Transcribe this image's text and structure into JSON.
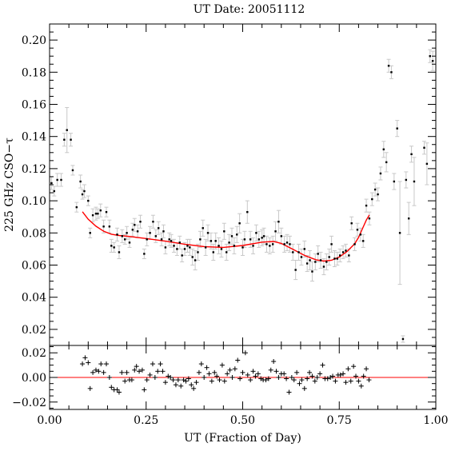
{
  "chart_data": [
    {
      "type": "scatter",
      "panel": "main",
      "title": "UT Date: 20051112",
      "ylabel": "225 GHz CSO−τ",
      "xlabel": "",
      "xlim": [
        0.0,
        1.0
      ],
      "ylim": [
        0.01,
        0.21
      ],
      "y_ticks": [
        0.02,
        0.04,
        0.06,
        0.08,
        0.1,
        0.12,
        0.14,
        0.16,
        0.18,
        0.2
      ],
      "y_tick_labels": [
        "0.02",
        "0.04",
        "0.06",
        "0.08",
        "0.10",
        "0.12",
        "0.14",
        "0.16",
        "0.18",
        "0.20"
      ],
      "x_ticks": [
        0.0,
        0.25,
        0.5,
        0.75,
        1.0
      ],
      "grid": false,
      "colors": {
        "points": "#000000",
        "errorbars": "#c8c8c8",
        "fit": "#ff0000"
      },
      "points": [
        [
          0.005,
          0.111,
          0.004
        ],
        [
          0.012,
          0.106,
          0.003
        ],
        [
          0.02,
          0.113,
          0.004
        ],
        [
          0.03,
          0.113,
          0.004
        ],
        [
          0.038,
          0.138,
          0.004
        ],
        [
          0.045,
          0.144,
          0.014
        ],
        [
          0.055,
          0.138,
          0.004
        ],
        [
          0.06,
          0.119,
          0.003
        ],
        [
          0.07,
          0.096,
          0.003
        ],
        [
          0.08,
          0.112,
          0.004
        ],
        [
          0.085,
          0.104,
          0.003
        ],
        [
          0.09,
          0.106,
          0.004
        ],
        [
          0.1,
          0.1,
          0.003
        ],
        [
          0.105,
          0.08,
          0.003
        ],
        [
          0.112,
          0.091,
          0.004
        ],
        [
          0.12,
          0.092,
          0.004
        ],
        [
          0.125,
          0.092,
          0.003
        ],
        [
          0.132,
          0.094,
          0.004
        ],
        [
          0.14,
          0.084,
          0.004
        ],
        [
          0.147,
          0.093,
          0.003
        ],
        [
          0.155,
          0.084,
          0.004
        ],
        [
          0.16,
          0.072,
          0.004
        ],
        [
          0.167,
          0.071,
          0.003
        ],
        [
          0.175,
          0.079,
          0.004
        ],
        [
          0.18,
          0.068,
          0.004
        ],
        [
          0.188,
          0.078,
          0.004
        ],
        [
          0.195,
          0.076,
          0.003
        ],
        [
          0.2,
          0.08,
          0.004
        ],
        [
          0.207,
          0.074,
          0.003
        ],
        [
          0.215,
          0.082,
          0.004
        ],
        [
          0.22,
          0.085,
          0.004
        ],
        [
          0.228,
          0.081,
          0.004
        ],
        [
          0.235,
          0.087,
          0.004
        ],
        [
          0.245,
          0.067,
          0.003
        ],
        [
          0.252,
          0.076,
          0.004
        ],
        [
          0.26,
          0.08,
          0.004
        ],
        [
          0.268,
          0.087,
          0.004
        ],
        [
          0.275,
          0.078,
          0.004
        ],
        [
          0.282,
          0.083,
          0.004
        ],
        [
          0.29,
          0.076,
          0.004
        ],
        [
          0.295,
          0.081,
          0.004
        ],
        [
          0.3,
          0.071,
          0.004
        ],
        [
          0.31,
          0.076,
          0.004
        ],
        [
          0.315,
          0.075,
          0.004
        ],
        [
          0.322,
          0.072,
          0.004
        ],
        [
          0.33,
          0.07,
          0.004
        ],
        [
          0.337,
          0.074,
          0.004
        ],
        [
          0.343,
          0.066,
          0.004
        ],
        [
          0.35,
          0.07,
          0.004
        ],
        [
          0.357,
          0.072,
          0.004
        ],
        [
          0.363,
          0.071,
          0.005
        ],
        [
          0.37,
          0.065,
          0.005
        ],
        [
          0.377,
          0.063,
          0.006
        ],
        [
          0.384,
          0.068,
          0.005
        ],
        [
          0.39,
          0.076,
          0.005
        ],
        [
          0.397,
          0.083,
          0.005
        ],
        [
          0.404,
          0.071,
          0.005
        ],
        [
          0.41,
          0.08,
          0.005
        ],
        [
          0.418,
          0.075,
          0.005
        ],
        [
          0.424,
          0.068,
          0.005
        ],
        [
          0.43,
          0.075,
          0.005
        ],
        [
          0.438,
          0.072,
          0.005
        ],
        [
          0.445,
          0.07,
          0.005
        ],
        [
          0.452,
          0.081,
          0.005
        ],
        [
          0.458,
          0.068,
          0.005
        ],
        [
          0.465,
          0.074,
          0.005
        ],
        [
          0.472,
          0.078,
          0.005
        ],
        [
          0.478,
          0.072,
          0.005
        ],
        [
          0.485,
          0.079,
          0.005
        ],
        [
          0.492,
          0.086,
          0.006
        ],
        [
          0.5,
          0.071,
          0.005
        ],
        [
          0.505,
          0.076,
          0.005
        ],
        [
          0.512,
          0.093,
          0.007
        ],
        [
          0.52,
          0.076,
          0.005
        ],
        [
          0.527,
          0.072,
          0.005
        ],
        [
          0.535,
          0.08,
          0.005
        ],
        [
          0.542,
          0.076,
          0.005
        ],
        [
          0.55,
          0.077,
          0.005
        ],
        [
          0.555,
          0.078,
          0.005
        ],
        [
          0.562,
          0.073,
          0.005
        ],
        [
          0.57,
          0.072,
          0.005
        ],
        [
          0.578,
          0.073,
          0.005
        ],
        [
          0.585,
          0.081,
          0.006
        ],
        [
          0.593,
          0.087,
          0.007
        ],
        [
          0.6,
          0.078,
          0.005
        ],
        [
          0.608,
          0.073,
          0.005
        ],
        [
          0.615,
          0.074,
          0.005
        ],
        [
          0.622,
          0.073,
          0.005
        ],
        [
          0.63,
          0.068,
          0.005
        ],
        [
          0.637,
          0.057,
          0.006
        ],
        [
          0.645,
          0.068,
          0.005
        ],
        [
          0.652,
          0.065,
          0.005
        ],
        [
          0.66,
          0.07,
          0.005
        ],
        [
          0.667,
          0.061,
          0.005
        ],
        [
          0.674,
          0.063,
          0.006
        ],
        [
          0.68,
          0.056,
          0.006
        ],
        [
          0.688,
          0.062,
          0.005
        ],
        [
          0.695,
          0.067,
          0.005
        ],
        [
          0.702,
          0.063,
          0.005
        ],
        [
          0.71,
          0.059,
          0.005
        ],
        [
          0.717,
          0.062,
          0.005
        ],
        [
          0.724,
          0.065,
          0.005
        ],
        [
          0.73,
          0.073,
          0.005
        ],
        [
          0.738,
          0.064,
          0.005
        ],
        [
          0.745,
          0.064,
          0.004
        ],
        [
          0.752,
          0.066,
          0.004
        ],
        [
          0.76,
          0.068,
          0.004
        ],
        [
          0.767,
          0.069,
          0.004
        ],
        [
          0.775,
          0.066,
          0.004
        ],
        [
          0.782,
          0.086,
          0.004
        ],
        [
          0.79,
          0.073,
          0.004
        ],
        [
          0.797,
          0.082,
          0.004
        ],
        [
          0.805,
          0.079,
          0.004
        ],
        [
          0.812,
          0.075,
          0.004
        ],
        [
          0.82,
          0.097,
          0.004
        ],
        [
          0.828,
          0.089,
          0.004
        ],
        [
          0.835,
          0.101,
          0.004
        ],
        [
          0.843,
          0.107,
          0.004
        ],
        [
          0.85,
          0.104,
          0.004
        ],
        [
          0.857,
          0.117,
          0.004
        ],
        [
          0.865,
          0.132,
          0.005
        ],
        [
          0.872,
          0.124,
          0.006
        ],
        [
          0.878,
          0.184,
          0.004
        ],
        [
          0.885,
          0.18,
          0.004
        ],
        [
          0.892,
          0.112,
          0.005
        ],
        [
          0.9,
          0.145,
          0.005
        ],
        [
          0.907,
          0.08,
          0.032
        ],
        [
          0.915,
          0.014,
          0.002
        ],
        [
          0.923,
          0.113,
          0.005
        ],
        [
          0.93,
          0.089,
          0.01
        ],
        [
          0.937,
          0.129,
          0.005
        ],
        [
          0.944,
          0.112,
          0.015
        ],
        [
          0.97,
          0.133,
          0.004
        ],
        [
          0.977,
          0.123,
          0.013
        ],
        [
          0.985,
          0.19,
          0.004
        ],
        [
          0.992,
          0.187,
          0.006
        ]
      ],
      "fit_curve": [
        [
          0.085,
          0.0932
        ],
        [
          0.1,
          0.0885
        ],
        [
          0.12,
          0.0842
        ],
        [
          0.14,
          0.0811
        ],
        [
          0.16,
          0.0792
        ],
        [
          0.18,
          0.0784
        ],
        [
          0.2,
          0.078
        ],
        [
          0.25,
          0.0765
        ],
        [
          0.3,
          0.0749
        ],
        [
          0.35,
          0.073
        ],
        [
          0.4,
          0.0715
        ],
        [
          0.45,
          0.071
        ],
        [
          0.5,
          0.0722
        ],
        [
          0.55,
          0.0743
        ],
        [
          0.58,
          0.0747
        ],
        [
          0.6,
          0.0735
        ],
        [
          0.63,
          0.0698
        ],
        [
          0.66,
          0.066
        ],
        [
          0.69,
          0.0633
        ],
        [
          0.71,
          0.0625
        ],
        [
          0.73,
          0.063
        ],
        [
          0.75,
          0.065
        ],
        [
          0.77,
          0.0684
        ],
        [
          0.79,
          0.0733
        ],
        [
          0.8,
          0.0772
        ],
        [
          0.81,
          0.0826
        ],
        [
          0.82,
          0.088
        ],
        [
          0.828,
          0.0912
        ]
      ]
    },
    {
      "type": "scatter",
      "panel": "residuals",
      "title": "",
      "xlabel": "UT (Fraction of Day)",
      "ylabel": "",
      "xlim": [
        0.0,
        1.0
      ],
      "ylim": [
        -0.026,
        0.026
      ],
      "x_ticks": [
        0.0,
        0.25,
        0.5,
        0.75,
        1.0
      ],
      "x_tick_labels": [
        "0.00",
        "0.25",
        "0.50",
        "0.75",
        "1.00"
      ],
      "y_ticks": [
        -0.02,
        0.0,
        0.02
      ],
      "y_tick_labels": [
        "−0.02",
        "0.00",
        "0.02"
      ],
      "zero_line": 0.0,
      "colors": {
        "points": "#000000",
        "zero_line": "#ff0000"
      },
      "residuals": [
        [
          0.085,
          0.011
        ],
        [
          0.092,
          0.016
        ],
        [
          0.1,
          0.012
        ],
        [
          0.105,
          -0.009
        ],
        [
          0.112,
          0.004
        ],
        [
          0.12,
          0.006
        ],
        [
          0.127,
          0.005
        ],
        [
          0.133,
          0.011
        ],
        [
          0.14,
          0.004
        ],
        [
          0.147,
          0.011
        ],
        [
          0.155,
          0.0
        ],
        [
          0.16,
          -0.008
        ],
        [
          0.167,
          -0.01
        ],
        [
          0.175,
          -0.01
        ],
        [
          0.18,
          -0.012
        ],
        [
          0.187,
          0.004
        ],
        [
          0.195,
          -0.003
        ],
        [
          0.2,
          0.004
        ],
        [
          0.207,
          -0.002
        ],
        [
          0.213,
          -0.002
        ],
        [
          0.22,
          0.006
        ],
        [
          0.225,
          0.009
        ],
        [
          0.232,
          0.005
        ],
        [
          0.24,
          0.006
        ],
        [
          0.245,
          -0.01
        ],
        [
          0.252,
          -0.002
        ],
        [
          0.26,
          0.002
        ],
        [
          0.267,
          0.011
        ],
        [
          0.273,
          0.0
        ],
        [
          0.28,
          0.005
        ],
        [
          0.287,
          0.011
        ],
        [
          0.293,
          0.005
        ],
        [
          0.3,
          -0.004
        ],
        [
          0.307,
          0.001
        ],
        [
          0.313,
          0.0
        ],
        [
          0.32,
          -0.002
        ],
        [
          0.327,
          -0.006
        ],
        [
          0.333,
          -0.002
        ],
        [
          0.34,
          -0.007
        ],
        [
          0.347,
          -0.002
        ],
        [
          0.353,
          -0.003
        ],
        [
          0.36,
          -0.001
        ],
        [
          0.367,
          -0.006
        ],
        [
          0.373,
          -0.009
        ],
        [
          0.38,
          -0.004
        ],
        [
          0.387,
          0.004
        ],
        [
          0.393,
          0.011
        ],
        [
          0.4,
          0.0
        ],
        [
          0.407,
          0.008
        ],
        [
          0.413,
          0.003
        ],
        [
          0.42,
          -0.003
        ],
        [
          0.427,
          0.004
        ],
        [
          0.433,
          0.001
        ],
        [
          0.44,
          -0.002
        ],
        [
          0.447,
          0.01
        ],
        [
          0.453,
          -0.003
        ],
        [
          0.46,
          0.003
        ],
        [
          0.467,
          0.006
        ],
        [
          0.473,
          0.0
        ],
        [
          0.48,
          0.007
        ],
        [
          0.487,
          0.014
        ],
        [
          0.493,
          -0.001
        ],
        [
          0.5,
          0.004
        ],
        [
          0.507,
          0.02
        ],
        [
          0.513,
          0.002
        ],
        [
          0.52,
          -0.002
        ],
        [
          0.527,
          0.005
        ],
        [
          0.533,
          0.001
        ],
        [
          0.54,
          0.003
        ],
        [
          0.547,
          -0.001
        ],
        [
          0.553,
          -0.002
        ],
        [
          0.56,
          -0.002
        ],
        [
          0.567,
          -0.001
        ],
        [
          0.573,
          0.006
        ],
        [
          0.58,
          0.013
        ],
        [
          0.587,
          0.005
        ],
        [
          0.593,
          0.0
        ],
        [
          0.6,
          0.003
        ],
        [
          0.607,
          0.003
        ],
        [
          0.613,
          -0.001
        ],
        [
          0.62,
          -0.012
        ],
        [
          0.627,
          0.0
        ],
        [
          0.633,
          -0.002
        ],
        [
          0.64,
          0.004
        ],
        [
          0.647,
          -0.005
        ],
        [
          0.653,
          -0.002
        ],
        [
          0.66,
          -0.009
        ],
        [
          0.667,
          -0.001
        ],
        [
          0.673,
          0.004
        ],
        [
          0.68,
          0.001
        ],
        [
          0.687,
          -0.003
        ],
        [
          0.693,
          0.0
        ],
        [
          0.7,
          0.003
        ],
        [
          0.707,
          0.01
        ],
        [
          0.713,
          -0.001
        ],
        [
          0.72,
          -0.001
        ],
        [
          0.727,
          0.0
        ],
        [
          0.733,
          0.001
        ],
        [
          0.74,
          -0.003
        ],
        [
          0.747,
          0.002
        ],
        [
          0.753,
          0.002
        ],
        [
          0.76,
          0.003
        ],
        [
          0.767,
          -0.004
        ],
        [
          0.773,
          0.007
        ],
        [
          0.78,
          -0.003
        ],
        [
          0.787,
          0.009
        ],
        [
          0.793,
          0.001
        ],
        [
          0.8,
          -0.003
        ],
        [
          0.807,
          -0.007
        ],
        [
          0.813,
          0.001
        ],
        [
          0.82,
          0.007
        ],
        [
          0.827,
          -0.002
        ]
      ]
    }
  ]
}
